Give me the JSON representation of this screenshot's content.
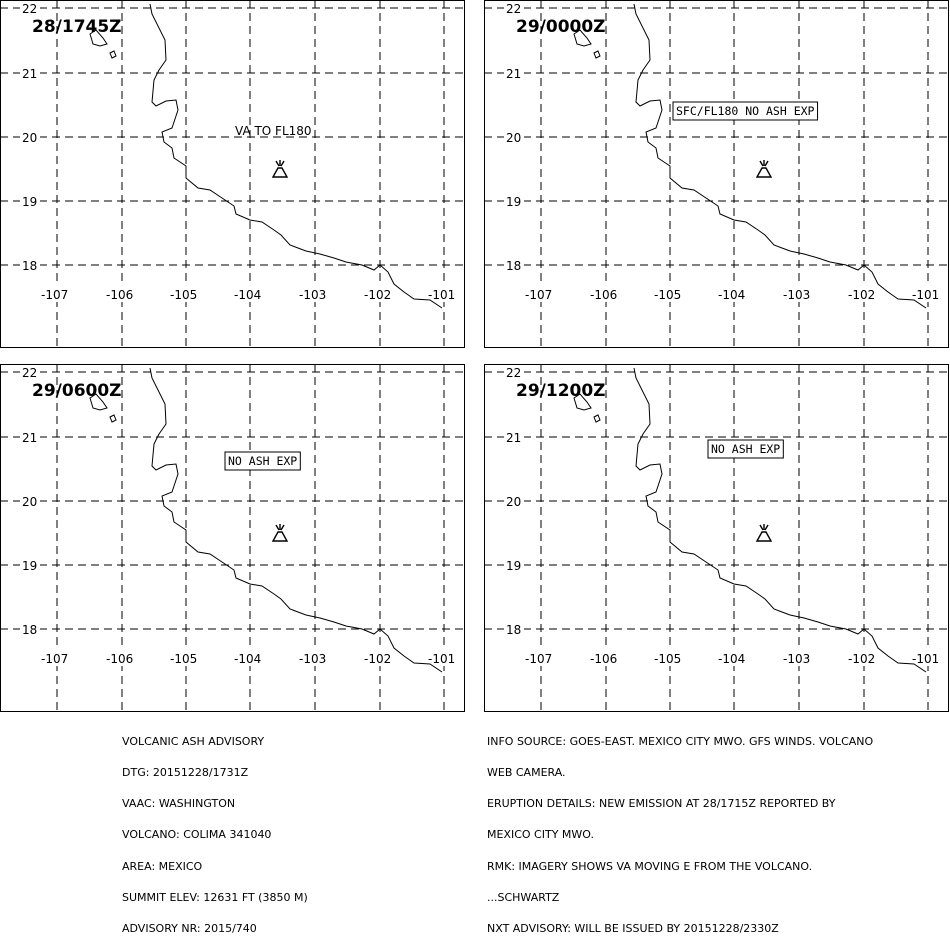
{
  "panels": [
    {
      "time": "28/1745Z",
      "note": "VA TO FL180",
      "note_style": "plain"
    },
    {
      "time": "29/0000Z",
      "note": "SFC/FL180 NO ASH EXP",
      "note_style": "boxed"
    },
    {
      "time": "29/0600Z",
      "note": "NO ASH EXP",
      "note_style": "boxed"
    },
    {
      "time": "29/1200Z",
      "note": "NO ASH EXP",
      "note_style": "boxed"
    }
  ],
  "axis": {
    "lat_labels": [
      "22",
      "21",
      "20",
      "19",
      "18"
    ],
    "lon_labels": [
      "-107",
      "-106",
      "-105",
      "-104",
      "-103",
      "-102",
      "-101"
    ]
  },
  "volcano_icon": "volcano-icon",
  "footer_left": [
    "VOLCANIC ASH ADVISORY",
    "DTG: 20151228/1731Z",
    "VAAC: WASHINGTON",
    "VOLCANO: COLIMA 341040",
    "AREA: MEXICO",
    "SUMMIT ELEV: 12631 FT (3850 M)",
    "ADVISORY NR: 2015/740"
  ],
  "footer_right": [
    "INFO SOURCE: GOES-EAST. MEXICO CITY MWO. GFS WINDS. VOLCANO",
    "WEB CAMERA.",
    "ERUPTION DETAILS: NEW EMISSION AT 28/1715Z REPORTED BY",
    "MEXICO CITY MWO.",
    "RMK: IMAGERY SHOWS VA MOVING E FROM THE VOLCANO.",
    "...SCHWARTZ",
    "NXT ADVISORY: WILL BE ISSUED BY 20151228/2330Z"
  ]
}
